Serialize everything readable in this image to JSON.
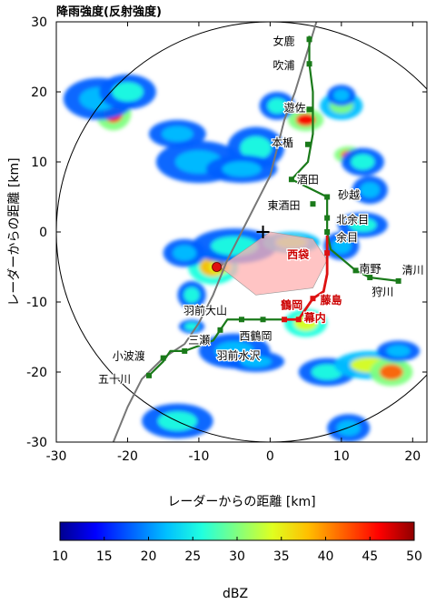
{
  "chart_data": {
    "type": "heatmap",
    "title": "降雨強度(反射強度)",
    "xlabel": "レーダーからの距離 [km]",
    "ylabel": "レーダーからの距離 [km]",
    "xlim": [
      -30,
      22
    ],
    "ylim": [
      -30,
      30
    ],
    "xticks": [
      -30,
      -20,
      -10,
      0,
      10,
      20
    ],
    "yticks": [
      -30,
      -20,
      -10,
      0,
      10,
      20,
      30
    ],
    "grid": false,
    "radar_range_km": 30,
    "radar_origin": [
      0,
      0
    ],
    "colorbar": {
      "label": "dBZ",
      "min": 10,
      "max": 50,
      "ticks": [
        10,
        15,
        20,
        25,
        30,
        35,
        40,
        45,
        50
      ],
      "colors": [
        "#00008f",
        "#0000ff",
        "#0060ff",
        "#00bfff",
        "#20ffdf",
        "#80ff80",
        "#dfff20",
        "#ffbf00",
        "#ff6000",
        "#ff0000",
        "#8f0000"
      ]
    },
    "railway_green": {
      "color": "#1a7a1a",
      "path": [
        [
          5.5,
          28
        ],
        [
          5.5,
          24
        ],
        [
          6,
          20
        ],
        [
          6,
          17.5
        ],
        [
          6,
          14
        ],
        [
          5.3,
          10
        ],
        [
          3,
          7.5
        ],
        [
          6,
          6
        ],
        [
          8,
          5
        ],
        [
          8,
          2.5
        ],
        [
          8,
          0
        ],
        [
          8.5,
          -2.5
        ],
        [
          12,
          -5.5
        ],
        [
          14,
          -6.5
        ],
        [
          18,
          -7
        ]
      ]
    },
    "railway_green_south": {
      "color": "#1a7a1a",
      "path": [
        [
          3,
          -12.5
        ],
        [
          0,
          -12.5
        ],
        [
          -3,
          -12.5
        ],
        [
          -6,
          -12.5
        ],
        [
          -7,
          -14
        ],
        [
          -8,
          -15.5
        ],
        [
          -12,
          -17
        ],
        [
          -14,
          -17
        ],
        [
          -15,
          -18.5
        ],
        [
          -17,
          -20.5
        ]
      ]
    },
    "railway_red": {
      "color": "#dd1111",
      "path": [
        [
          8,
          -0.5
        ],
        [
          8,
          -3
        ],
        [
          8,
          -6
        ],
        [
          7.5,
          -8.5
        ],
        [
          6,
          -9.5
        ],
        [
          5,
          -11
        ],
        [
          4,
          -12.5
        ],
        [
          2,
          -12.5
        ]
      ]
    },
    "coastline": {
      "color": "#777777",
      "path": [
        [
          -22,
          -30
        ],
        [
          -20,
          -25
        ],
        [
          -18,
          -21
        ],
        [
          -15,
          -18
        ],
        [
          -12,
          -16
        ],
        [
          -10,
          -13
        ],
        [
          -8,
          -9
        ],
        [
          -6,
          -4
        ],
        [
          -4,
          0
        ],
        [
          -2,
          4
        ],
        [
          0,
          8
        ],
        [
          1,
          12
        ],
        [
          2,
          16
        ],
        [
          3.5,
          20
        ],
        [
          5,
          25
        ],
        [
          6.5,
          30
        ]
      ]
    },
    "red_sector": {
      "color": "#ffb0b0",
      "points": [
        [
          0,
          0
        ],
        [
          -7,
          -5
        ],
        [
          -2,
          -9
        ],
        [
          6,
          -8
        ],
        [
          8,
          -4
        ],
        [
          6,
          -1
        ]
      ]
    },
    "radar_site": [
      -1,
      0
    ],
    "red_marker": [
      -7.5,
      -5
    ],
    "stations": [
      {
        "name": "女鹿",
        "x": 5.5,
        "y": 27.5,
        "color": "green",
        "label_dx": -40,
        "label_dy": 6
      },
      {
        "name": "吹浦",
        "x": 5.5,
        "y": 24,
        "color": "green",
        "label_dx": -40,
        "label_dy": 6
      },
      {
        "name": "遊佐",
        "x": 5.5,
        "y": 17.5,
        "color": "green",
        "label_dx": -28,
        "label_dy": 2
      },
      {
        "name": "本楯",
        "x": 5.3,
        "y": 12.5,
        "color": "green",
        "label_dx": -40,
        "label_dy": 2
      },
      {
        "name": "酒田",
        "x": 3,
        "y": 7.5,
        "color": "green",
        "label_dx": 6,
        "label_dy": 4
      },
      {
        "name": "東酒田",
        "x": 6,
        "y": 4,
        "color": "green",
        "label_dx": -50,
        "label_dy": 6
      },
      {
        "name": "砂越",
        "x": 8,
        "y": 5,
        "color": "green",
        "label_dx": 12,
        "label_dy": 2
      },
      {
        "name": "北余目",
        "x": 8,
        "y": 2,
        "color": "green",
        "label_dx": 10,
        "label_dy": 6
      },
      {
        "name": "余目",
        "x": 8,
        "y": 0,
        "color": "green",
        "label_dx": 10,
        "label_dy": 10
      },
      {
        "name": "南野",
        "x": 12,
        "y": -5.5,
        "color": "green",
        "label_dx": 4,
        "label_dy": 2
      },
      {
        "name": "狩川",
        "x": 14,
        "y": -6.5,
        "color": "green",
        "label_dx": 2,
        "label_dy": 20
      },
      {
        "name": "清川",
        "x": 18,
        "y": -7,
        "color": "green",
        "label_dx": 4,
        "label_dy": -8
      },
      {
        "name": "西袋",
        "x": 8,
        "y": -3,
        "color": "red",
        "label_dx": -44,
        "label_dy": 6
      },
      {
        "name": "藤島",
        "x": 6,
        "y": -9.5,
        "color": "red",
        "label_dx": 8,
        "label_dy": 6
      },
      {
        "name": "鶴岡",
        "x": 2,
        "y": -12.5,
        "color": "red",
        "label_dx": -4,
        "label_dy": -12
      },
      {
        "name": "幕内",
        "x": 4,
        "y": -12.5,
        "color": "red",
        "label_dx": 6,
        "label_dy": 2
      },
      {
        "name": "西鶴岡",
        "x": -1,
        "y": -12.5,
        "color": "green",
        "label_dx": -26,
        "label_dy": 22
      },
      {
        "name": "羽前大山",
        "x": -4,
        "y": -12.5,
        "color": "green",
        "label_dx": -64,
        "label_dy": -6
      },
      {
        "name": "羽前水沢",
        "x": -7,
        "y": -14,
        "color": "green",
        "label_dx": -4,
        "label_dy": 32
      },
      {
        "name": "三瀬",
        "x": -12,
        "y": -17,
        "color": "green",
        "label_dx": 4,
        "label_dy": -8
      },
      {
        "name": "小波渡",
        "x": -15,
        "y": -18,
        "color": "green",
        "label_dx": -56,
        "label_dy": 2
      },
      {
        "name": "五十川",
        "x": -17,
        "y": -20.5,
        "color": "green",
        "label_dx": -56,
        "label_dy": 8
      }
    ],
    "echoes": [
      {
        "cx": -22,
        "cy": 17,
        "rx": 2.5,
        "ry": 2.5,
        "level": 0.85
      },
      {
        "cx": -24,
        "cy": 19,
        "rx": 5,
        "ry": 3,
        "level": 0.25
      },
      {
        "cx": -20,
        "cy": 20,
        "rx": 4,
        "ry": 2.5,
        "level": 0.35
      },
      {
        "cx": -13,
        "cy": 14,
        "rx": 4,
        "ry": 2,
        "level": 0.3
      },
      {
        "cx": -10,
        "cy": 10,
        "rx": 6,
        "ry": 3,
        "level": 0.3
      },
      {
        "cx": -2,
        "cy": 12,
        "rx": 4,
        "ry": 3,
        "level": 0.35
      },
      {
        "cx": -4,
        "cy": 9,
        "rx": 5,
        "ry": 2,
        "level": 0.25
      },
      {
        "cx": 1,
        "cy": 18,
        "rx": 2.5,
        "ry": 2,
        "level": 0.4
      },
      {
        "cx": 5,
        "cy": 16,
        "rx": 2.5,
        "ry": 1.6,
        "level": 0.85
      },
      {
        "cx": 10,
        "cy": 18,
        "rx": 3,
        "ry": 2,
        "level": 0.45
      },
      {
        "cx": 10,
        "cy": 19.5,
        "rx": 2,
        "ry": 1.5,
        "level": 0.3
      },
      {
        "cx": 11,
        "cy": 11,
        "rx": 2,
        "ry": 1.2,
        "level": 0.75
      },
      {
        "cx": 13,
        "cy": 10,
        "rx": 3,
        "ry": 2,
        "level": 0.35
      },
      {
        "cx": 14,
        "cy": 6,
        "rx": 2.5,
        "ry": 2,
        "level": 0.3
      },
      {
        "cx": 13,
        "cy": 1,
        "rx": 3.5,
        "ry": 1.8,
        "level": 0.35
      },
      {
        "cx": 10,
        "cy": -2,
        "rx": 2.5,
        "ry": 2,
        "level": 0.25
      },
      {
        "cx": -8,
        "cy": -5,
        "rx": 3.5,
        "ry": 2.5,
        "level": 0.65
      },
      {
        "cx": -7,
        "cy": -5,
        "rx": 1.5,
        "ry": 1,
        "level": 0.95
      },
      {
        "cx": -5,
        "cy": -2,
        "rx": 6,
        "ry": 2.5,
        "level": 0.35
      },
      {
        "cx": 3,
        "cy": -1.5,
        "rx": 4,
        "ry": 1.5,
        "level": 0.45
      },
      {
        "cx": -12,
        "cy": -3,
        "rx": 3,
        "ry": 2,
        "level": 0.25
      },
      {
        "cx": -11,
        "cy": -9,
        "rx": 2,
        "ry": 2,
        "level": 0.4
      },
      {
        "cx": -11,
        "cy": -13.5,
        "rx": 1.8,
        "ry": 1,
        "level": 0.35
      },
      {
        "cx": 5,
        "cy": -13,
        "rx": 3,
        "ry": 2,
        "level": 0.6
      },
      {
        "cx": -5,
        "cy": -17,
        "rx": 5,
        "ry": 2.5,
        "level": 0.25
      },
      {
        "cx": -2,
        "cy": -18.5,
        "rx": 4,
        "ry": 1.5,
        "level": 0.3
      },
      {
        "cx": 8,
        "cy": -20,
        "rx": 4,
        "ry": 2,
        "level": 0.4
      },
      {
        "cx": 14,
        "cy": -19,
        "rx": 5,
        "ry": 2,
        "level": 0.55
      },
      {
        "cx": 17,
        "cy": -20,
        "rx": 3,
        "ry": 2,
        "level": 0.75
      },
      {
        "cx": 18,
        "cy": -17,
        "rx": 3,
        "ry": 1.5,
        "level": 0.3
      },
      {
        "cx": -13,
        "cy": -27,
        "rx": 5,
        "ry": 2.5,
        "level": 0.35
      },
      {
        "cx": 11,
        "cy": -28,
        "rx": 3,
        "ry": 2,
        "level": 0.3
      }
    ]
  }
}
